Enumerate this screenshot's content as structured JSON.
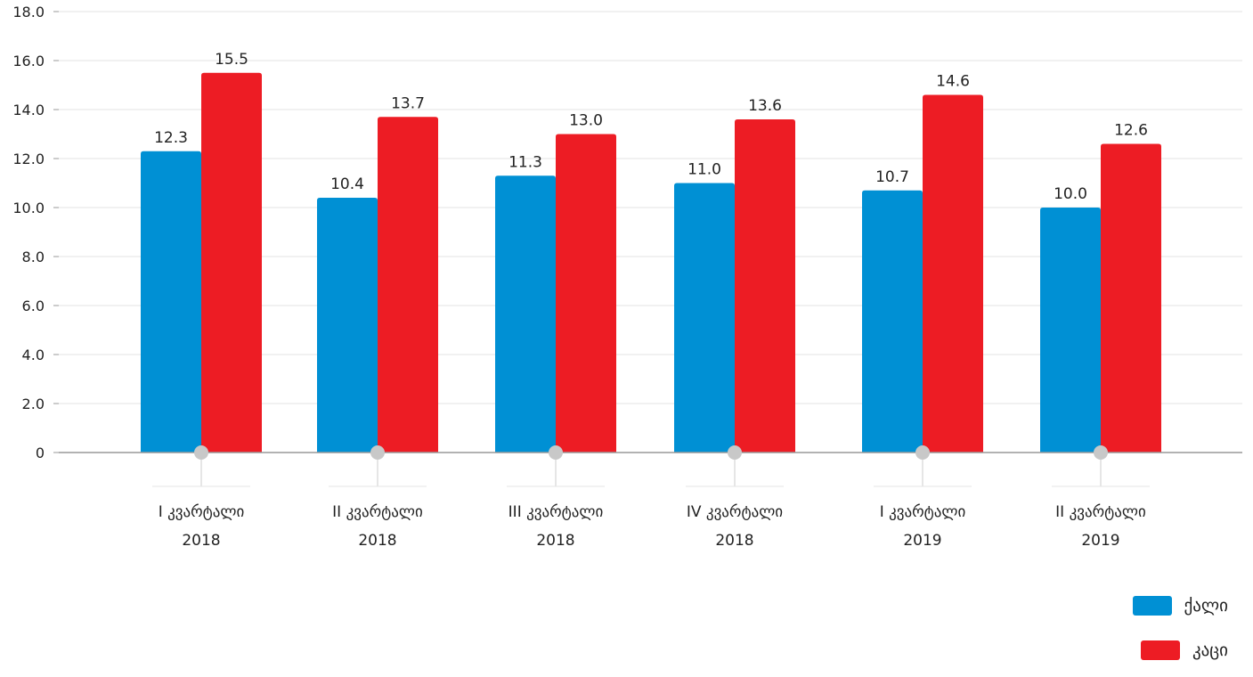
{
  "chart_data": {
    "type": "bar",
    "categories": [
      [
        "I კვარტალი",
        "2018"
      ],
      [
        "II კვარტალი",
        "2018"
      ],
      [
        "III კვარტალი",
        "2018"
      ],
      [
        "IV კვარტალი",
        "2018"
      ],
      [
        "I კვარტალი",
        "2019"
      ],
      [
        "II კვარტალი",
        "2019"
      ]
    ],
    "series": [
      {
        "name": "ქალი",
        "color": "#0090D4",
        "values": [
          12.3,
          10.4,
          11.3,
          11.0,
          10.7,
          10.0
        ],
        "labels": [
          "12.3",
          "10.4",
          "11.3",
          "11.0",
          "10.7",
          "10.0"
        ]
      },
      {
        "name": "კაცი",
        "color": "#ED1C24",
        "values": [
          15.5,
          13.7,
          13.0,
          13.6,
          14.6,
          12.6
        ],
        "labels": [
          "15.5",
          "13.7",
          "13.0",
          "13.6",
          "14.6",
          "12.6"
        ]
      }
    ],
    "yticks": [
      "0",
      "2.0",
      "4.0",
      "6.0",
      "8.0",
      "10.0",
      "12.0",
      "14.0",
      "16.0",
      "18.0"
    ],
    "ylim": [
      0,
      18
    ],
    "grid": true,
    "legend_position": "bottom-right"
  }
}
